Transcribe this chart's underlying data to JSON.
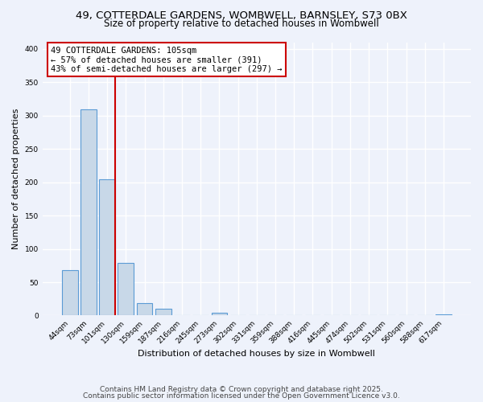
{
  "title_line1": "49, COTTERDALE GARDENS, WOMBWELL, BARNSLEY, S73 0BX",
  "title_line2": "Size of property relative to detached houses in Wombwell",
  "bar_labels": [
    "44sqm",
    "73sqm",
    "101sqm",
    "130sqm",
    "159sqm",
    "187sqm",
    "216sqm",
    "245sqm",
    "273sqm",
    "302sqm",
    "331sqm",
    "359sqm",
    "388sqm",
    "416sqm",
    "445sqm",
    "474sqm",
    "502sqm",
    "531sqm",
    "560sqm",
    "588sqm",
    "617sqm"
  ],
  "bar_values": [
    68,
    309,
    204,
    79,
    19,
    10,
    0,
    0,
    4,
    0,
    0,
    0,
    0,
    0,
    0,
    0,
    0,
    0,
    0,
    0,
    2
  ],
  "bar_color": "#c8d8e8",
  "bar_edge_color": "#5b9bd5",
  "ylim": [
    0,
    410
  ],
  "yticks": [
    0,
    50,
    100,
    150,
    200,
    250,
    300,
    350,
    400
  ],
  "ylabel": "Number of detached properties",
  "xlabel": "Distribution of detached houses by size in Wombwell",
  "vline_x_index": 2,
  "vline_color": "#cc0000",
  "annotation_text": "49 COTTERDALE GARDENS: 105sqm\n← 57% of detached houses are smaller (391)\n43% of semi-detached houses are larger (297) →",
  "annotation_box_color": "#ffffff",
  "annotation_box_edge": "#cc0000",
  "footnote1": "Contains HM Land Registry data © Crown copyright and database right 2025.",
  "footnote2": "Contains public sector information licensed under the Open Government Licence v3.0.",
  "bg_color": "#eef2fb",
  "plot_bg_color": "#eef2fb",
  "grid_color": "#ffffff",
  "title_fontsize": 9.5,
  "subtitle_fontsize": 8.5,
  "axis_label_fontsize": 8,
  "tick_label_fontsize": 6.5,
  "annotation_fontsize": 7.5,
  "footnote_fontsize": 6.5
}
